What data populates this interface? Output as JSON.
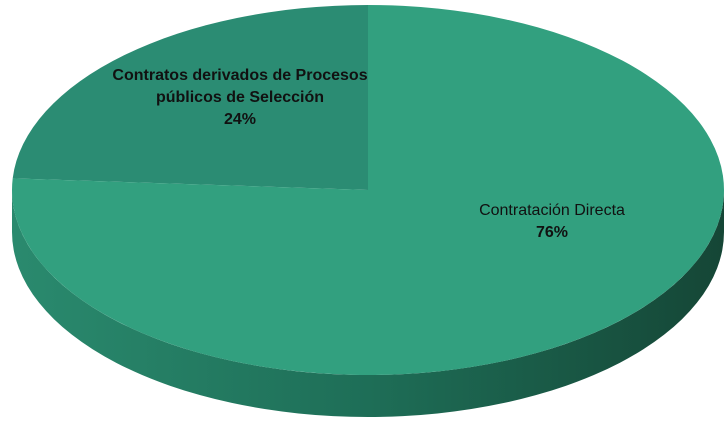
{
  "chart_data": {
    "type": "pie",
    "categories": [
      "Contratos derivados de Procesos públicos de Selección",
      "Contratación Directa"
    ],
    "values": [
      24,
      76
    ],
    "value_labels": [
      "24%",
      "76%"
    ],
    "colors": [
      "#2b8c73",
      "#32a07f"
    ]
  }
}
